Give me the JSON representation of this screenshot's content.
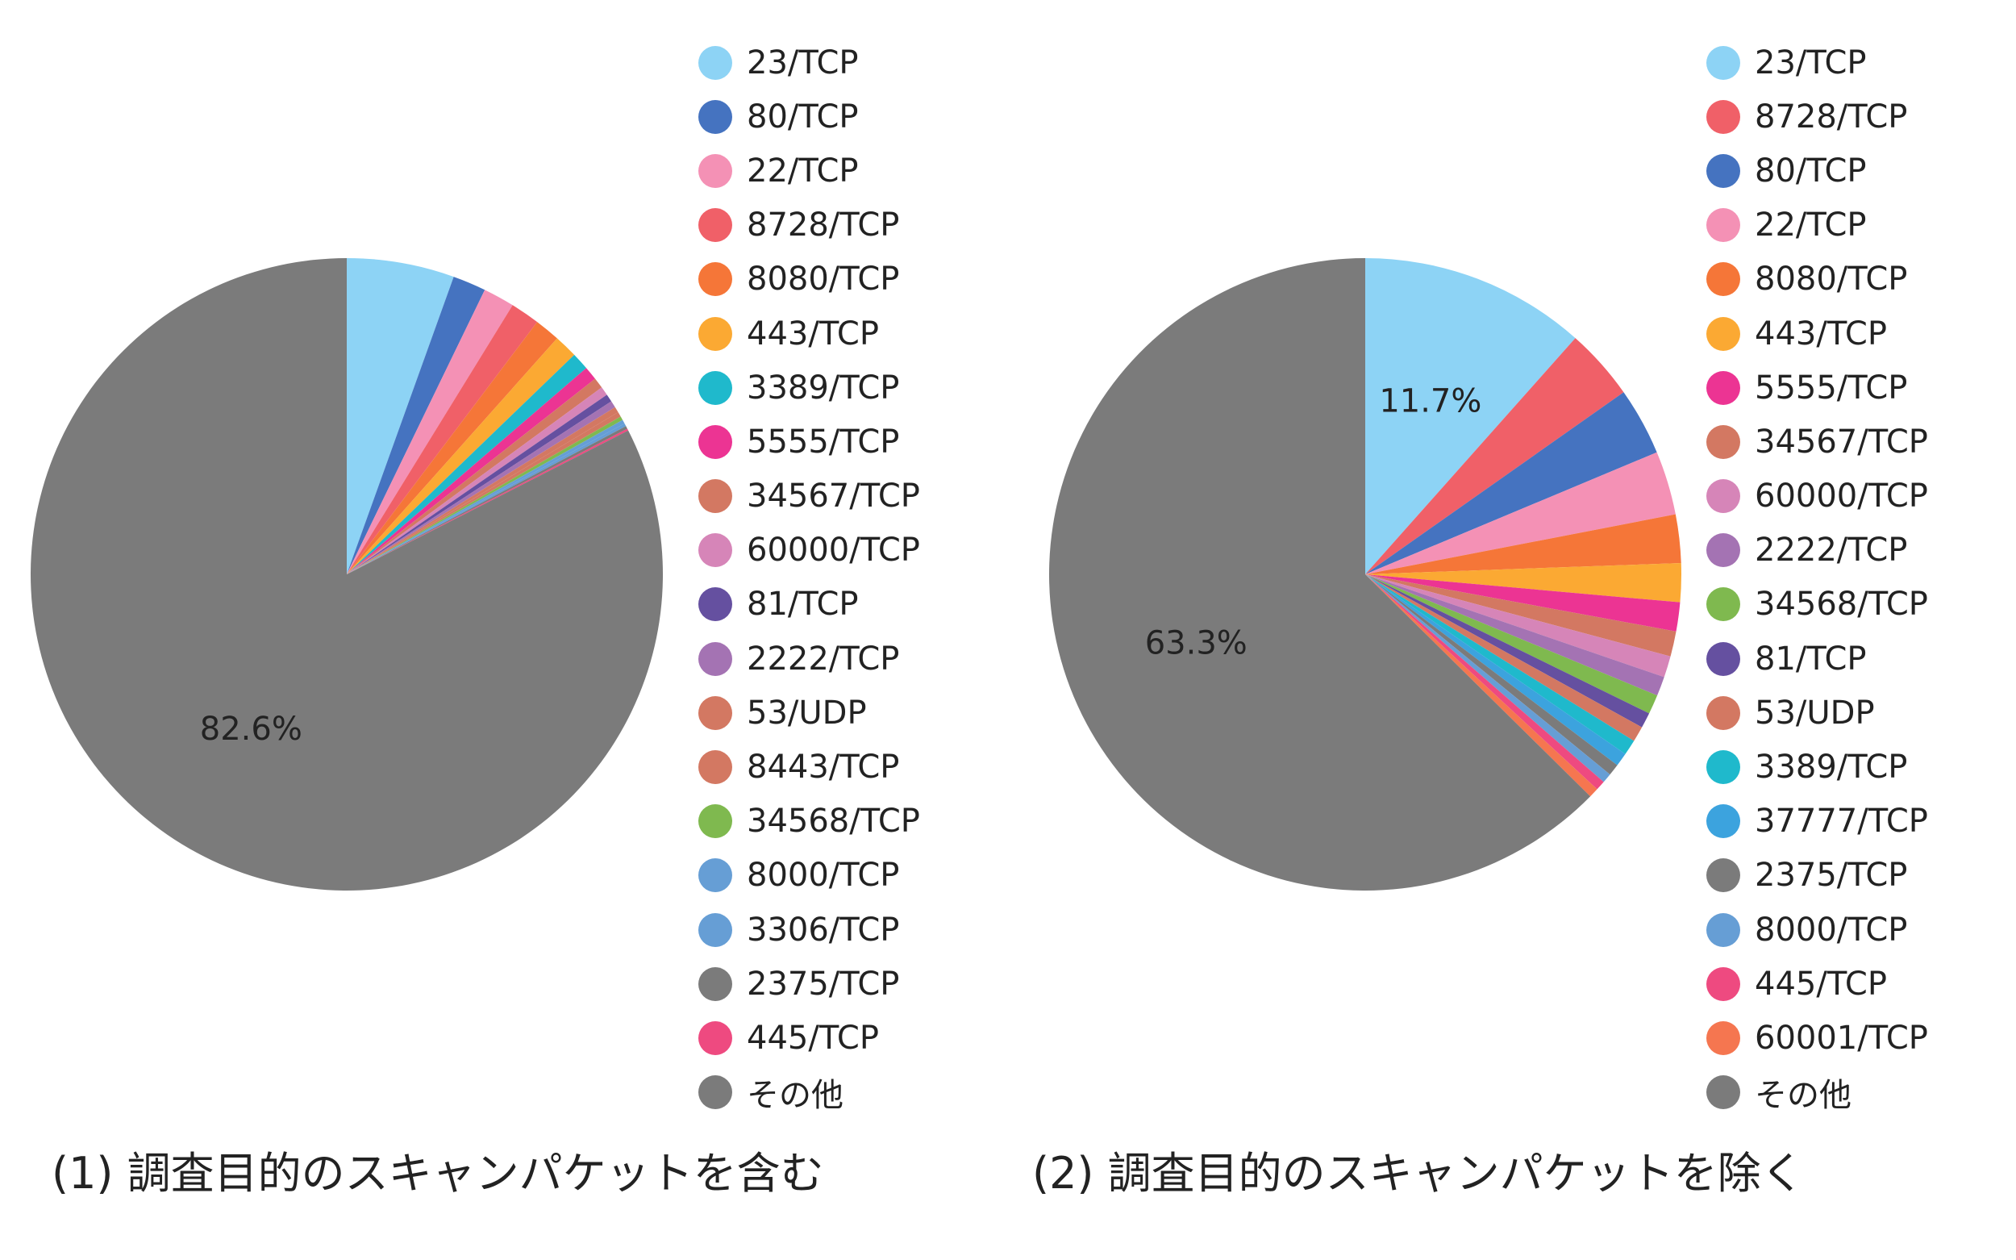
{
  "chart_data": [
    {
      "type": "pie",
      "caption": "(1) 調査目的のスキャンパケットを含む",
      "slices": [
        {
          "label": "23/TCP",
          "value": 5.5,
          "color": "#8dd3f5"
        },
        {
          "label": "80/TCP",
          "value": 1.7,
          "color": "#4573c0"
        },
        {
          "label": "22/TCP",
          "value": 1.6,
          "color": "#f491b5"
        },
        {
          "label": "8728/TCP",
          "value": 1.5,
          "color": "#f06068"
        },
        {
          "label": "8080/TCP",
          "value": 1.3,
          "color": "#f57638"
        },
        {
          "label": "443/TCP",
          "value": 1.2,
          "color": "#fba933"
        },
        {
          "label": "3389/TCP",
          "value": 0.9,
          "color": "#1fb9cc"
        },
        {
          "label": "5555/TCP",
          "value": 0.7,
          "color": "#ec3493"
        },
        {
          "label": "34567/TCP",
          "value": 0.55,
          "color": "#d37862"
        },
        {
          "label": "60000/TCP",
          "value": 0.45,
          "color": "#d685b8"
        },
        {
          "label": "81/TCP",
          "value": 0.4,
          "color": "#6550a0"
        },
        {
          "label": "2222/TCP",
          "value": 0.35,
          "color": "#a473b3"
        },
        {
          "label": "53/UDP",
          "value": 0.3,
          "color": "#d37862"
        },
        {
          "label": "8443/TCP",
          "value": 0.25,
          "color": "#d37862"
        },
        {
          "label": "34568/TCP",
          "value": 0.2,
          "color": "#7fb94f"
        },
        {
          "label": "8000/TCP",
          "value": 0.2,
          "color": "#669ed5"
        },
        {
          "label": "3306/TCP",
          "value": 0.15,
          "color": "#669ed5"
        },
        {
          "label": "2375/TCP",
          "value": 0.15,
          "color": "#7b7b7b"
        },
        {
          "label": "445/TCP",
          "value": 0.1,
          "color": "#ee4a80"
        },
        {
          "label": "その他",
          "value": 82.6,
          "color": "#7b7b7b",
          "data_label": "82.6%"
        }
      ]
    },
    {
      "type": "pie",
      "caption": "(2) 調査目的のスキャンパケットを除く",
      "slices": [
        {
          "label": "23/TCP",
          "value": 11.7,
          "color": "#8dd3f5",
          "data_label": "11.7%"
        },
        {
          "label": "8728/TCP",
          "value": 3.7,
          "color": "#f06068"
        },
        {
          "label": "80/TCP",
          "value": 3.5,
          "color": "#4573c0"
        },
        {
          "label": "22/TCP",
          "value": 3.3,
          "color": "#f491b5"
        },
        {
          "label": "8080/TCP",
          "value": 2.5,
          "color": "#f57638"
        },
        {
          "label": "443/TCP",
          "value": 2.0,
          "color": "#fba933"
        },
        {
          "label": "5555/TCP",
          "value": 1.5,
          "color": "#ec3493"
        },
        {
          "label": "34567/TCP",
          "value": 1.3,
          "color": "#d37862"
        },
        {
          "label": "60000/TCP",
          "value": 1.1,
          "color": "#d685b8"
        },
        {
          "label": "2222/TCP",
          "value": 1.0,
          "color": "#a473b3"
        },
        {
          "label": "34568/TCP",
          "value": 1.0,
          "color": "#7fb94f"
        },
        {
          "label": "81/TCP",
          "value": 0.8,
          "color": "#6550a0"
        },
        {
          "label": "53/UDP",
          "value": 0.8,
          "color": "#d37862"
        },
        {
          "label": "3389/TCP",
          "value": 0.8,
          "color": "#1fb9cc"
        },
        {
          "label": "37777/TCP",
          "value": 0.7,
          "color": "#3ca3de"
        },
        {
          "label": "2375/TCP",
          "value": 0.6,
          "color": "#7b7b7b"
        },
        {
          "label": "8000/TCP",
          "value": 0.5,
          "color": "#669ed5"
        },
        {
          "label": "445/TCP",
          "value": 0.5,
          "color": "#ee4a80"
        },
        {
          "label": "60001/TCP",
          "value": 0.5,
          "color": "#f57650"
        },
        {
          "label": "その他",
          "value": 63.3,
          "color": "#7b7b7b",
          "data_label": "63.3%"
        }
      ]
    }
  ]
}
